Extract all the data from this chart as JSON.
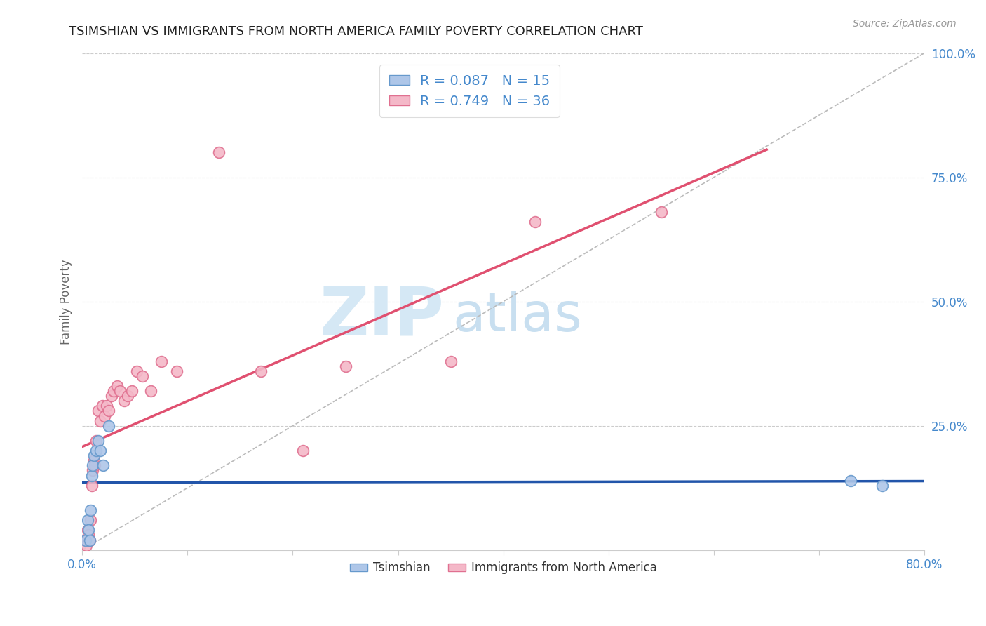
{
  "title": "TSIMSHIAN VS IMMIGRANTS FROM NORTH AMERICA FAMILY POVERTY CORRELATION CHART",
  "source": "Source: ZipAtlas.com",
  "ylabel": "Family Poverty",
  "xlim": [
    0.0,
    0.8
  ],
  "ylim": [
    0.0,
    1.0
  ],
  "background_color": "#ffffff",
  "grid_color": "#cccccc",
  "title_color": "#222222",
  "title_fontsize": 13,
  "axis_tick_color": "#4488cc",
  "watermark_zip": "ZIP",
  "watermark_atlas": "atlas",
  "watermark_color_zip": "#cce0f0",
  "watermark_color_atlas": "#b8d4ee",
  "tsimshian_color": "#aec6e8",
  "tsimshian_edge": "#6699cc",
  "immigrants_color": "#f4b8c8",
  "immigrants_edge": "#e07090",
  "tsimshian_R": 0.087,
  "tsimshian_N": 15,
  "immigrants_R": 0.749,
  "immigrants_N": 36,
  "tsimshian_line_color": "#2255aa",
  "immigrants_line_color": "#e05070",
  "reference_line_color": "#bbbbbb",
  "tsimshian_x": [
    0.003,
    0.005,
    0.006,
    0.007,
    0.008,
    0.009,
    0.01,
    0.011,
    0.013,
    0.015,
    0.017,
    0.02,
    0.025,
    0.73,
    0.76
  ],
  "tsimshian_y": [
    0.02,
    0.06,
    0.04,
    0.02,
    0.08,
    0.15,
    0.17,
    0.19,
    0.2,
    0.22,
    0.2,
    0.17,
    0.25,
    0.14,
    0.13
  ],
  "immigrants_x": [
    0.003,
    0.004,
    0.005,
    0.006,
    0.007,
    0.008,
    0.009,
    0.01,
    0.011,
    0.012,
    0.013,
    0.015,
    0.017,
    0.019,
    0.021,
    0.023,
    0.025,
    0.028,
    0.03,
    0.033,
    0.036,
    0.04,
    0.043,
    0.047,
    0.052,
    0.057,
    0.065,
    0.075,
    0.09,
    0.13,
    0.17,
    0.21,
    0.25,
    0.35,
    0.43,
    0.55
  ],
  "immigrants_y": [
    0.02,
    0.01,
    0.04,
    0.03,
    0.02,
    0.06,
    0.13,
    0.16,
    0.18,
    0.17,
    0.22,
    0.28,
    0.26,
    0.29,
    0.27,
    0.29,
    0.28,
    0.31,
    0.32,
    0.33,
    0.32,
    0.3,
    0.31,
    0.32,
    0.36,
    0.35,
    0.32,
    0.38,
    0.36,
    0.8,
    0.36,
    0.2,
    0.37,
    0.38,
    0.66,
    0.68
  ],
  "legend_label_tsimshian": "R = 0.087   N = 15",
  "legend_label_immigrants": "R = 0.749   N = 36",
  "bottom_legend_tsimshian": "Tsimshian",
  "bottom_legend_immigrants": "Immigrants from North America"
}
